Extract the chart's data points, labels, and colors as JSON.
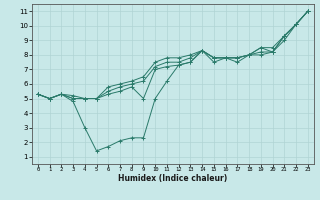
{
  "xlabel": "Humidex (Indice chaleur)",
  "ylabel": "",
  "bg_color": "#c8e8e8",
  "grid_color": "#b0d4d4",
  "line_color": "#2a7a6a",
  "xlim": [
    -0.5,
    23.5
  ],
  "ylim": [
    0.5,
    11.5
  ],
  "xticks": [
    0,
    1,
    2,
    3,
    4,
    5,
    6,
    7,
    8,
    9,
    10,
    11,
    12,
    13,
    14,
    15,
    16,
    17,
    18,
    19,
    20,
    21,
    22,
    23
  ],
  "yticks": [
    1,
    2,
    3,
    4,
    5,
    6,
    7,
    8,
    9,
    10,
    11
  ],
  "lines": [
    {
      "x": [
        0,
        1,
        2,
        3,
        4,
        5,
        6,
        7,
        8,
        9,
        10,
        11,
        12,
        13,
        14,
        15,
        16,
        17,
        18,
        19,
        20,
        21,
        22,
        23
      ],
      "y": [
        5.3,
        5.0,
        5.3,
        4.8,
        3.0,
        1.4,
        1.7,
        2.1,
        2.3,
        2.3,
        5.0,
        6.2,
        7.3,
        7.5,
        8.3,
        7.8,
        7.8,
        7.8,
        8.0,
        8.5,
        8.2,
        9.3,
        10.1,
        11.0
      ]
    },
    {
      "x": [
        0,
        1,
        2,
        3,
        4,
        5,
        6,
        7,
        8,
        9,
        10,
        11,
        12,
        13,
        14,
        15,
        16,
        17,
        18,
        19,
        20,
        21,
        22,
        23
      ],
      "y": [
        5.3,
        5.0,
        5.3,
        5.0,
        5.0,
        5.0,
        5.3,
        5.5,
        5.8,
        5.0,
        7.0,
        7.2,
        7.3,
        7.5,
        8.3,
        7.5,
        7.8,
        7.8,
        8.0,
        8.2,
        8.2,
        9.3,
        10.1,
        11.0
      ]
    },
    {
      "x": [
        0,
        1,
        2,
        3,
        4,
        5,
        6,
        7,
        8,
        9,
        10,
        11,
        12,
        13,
        14,
        15,
        16,
        17,
        18,
        19,
        20,
        21,
        22,
        23
      ],
      "y": [
        5.3,
        5.0,
        5.3,
        5.0,
        5.0,
        5.0,
        5.5,
        5.8,
        6.0,
        6.2,
        7.2,
        7.5,
        7.5,
        7.8,
        8.3,
        7.8,
        7.8,
        7.5,
        8.0,
        8.0,
        8.2,
        9.0,
        10.1,
        11.0
      ]
    },
    {
      "x": [
        0,
        1,
        2,
        3,
        4,
        5,
        6,
        7,
        8,
        9,
        10,
        11,
        12,
        13,
        14,
        15,
        16,
        17,
        18,
        19,
        20,
        21,
        22,
        23
      ],
      "y": [
        5.3,
        5.0,
        5.3,
        5.2,
        5.0,
        5.0,
        5.8,
        6.0,
        6.2,
        6.5,
        7.5,
        7.8,
        7.8,
        8.0,
        8.3,
        7.8,
        7.8,
        7.8,
        8.0,
        8.5,
        8.5,
        9.3,
        10.1,
        11.0
      ]
    }
  ]
}
